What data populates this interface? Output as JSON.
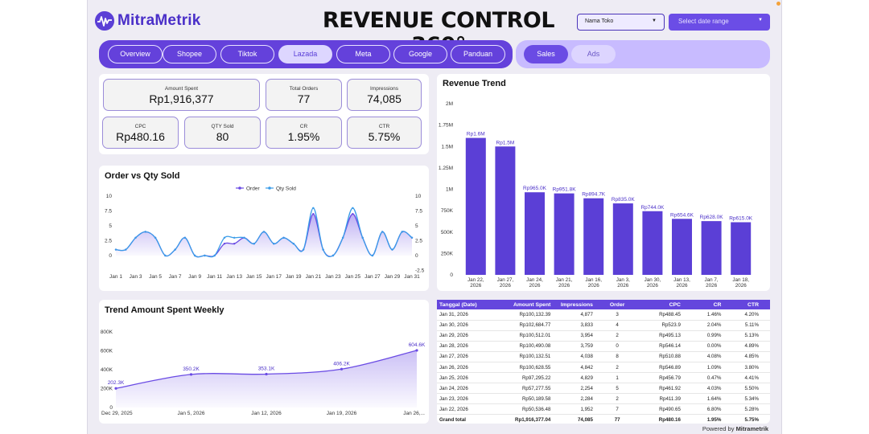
{
  "brand": {
    "name": "MitraMetrik"
  },
  "header": {
    "title": "REVENUE CONTROL 360°"
  },
  "filters": {
    "store": "Nama Toko",
    "date_range": "Select date range"
  },
  "tabs": [
    "Overview",
    "Shopee",
    "Tiktok",
    "Lazada",
    "Meta",
    "Google",
    "Panduan"
  ],
  "active_tab": "Lazada",
  "modes": [
    "Sales",
    "Ads"
  ],
  "active_mode": "Sales",
  "kpis": [
    {
      "label": "Amount Spent",
      "value": "Rp1,916,377"
    },
    {
      "label": "Total Orders",
      "value": "77"
    },
    {
      "label": "Impressions",
      "value": "74,085"
    },
    {
      "label": "CPC",
      "value": "Rp480.16"
    },
    {
      "label": "QTY Sold",
      "value": "80"
    },
    {
      "label": "CR",
      "value": "1.95%"
    },
    {
      "label": "CTR",
      "value": "5.75%"
    }
  ],
  "panels": {
    "order_qty_title": "Order vs Qty Sold",
    "weekly_title": "Trend Amount Spent Weekly",
    "revenue_title": "Revenue Trend"
  },
  "colors": {
    "accent": "#6441db",
    "bar": "#5b3fd6",
    "order_line": "#6a4be4",
    "qty_line": "#3a9ce8"
  },
  "chart_data": [
    {
      "type": "line",
      "title": "Order vs Qty Sold",
      "x_ticks": [
        "Jan 1",
        "Jan 3",
        "Jan 5",
        "Jan 7",
        "Jan 9",
        "Jan 11",
        "Jan 13",
        "Jan 15",
        "Jan 17",
        "Jan 19",
        "Jan 21",
        "Jan 23",
        "Jan 25",
        "Jan 27",
        "Jan 29",
        "Jan 31"
      ],
      "x": [
        "Jan 1",
        "Jan 2",
        "Jan 3",
        "Jan 4",
        "Jan 5",
        "Jan 6",
        "Jan 7",
        "Jan 8",
        "Jan 9",
        "Jan 10",
        "Jan 11",
        "Jan 12",
        "Jan 13",
        "Jan 14",
        "Jan 15",
        "Jan 16",
        "Jan 17",
        "Jan 18",
        "Jan 19",
        "Jan 20",
        "Jan 21",
        "Jan 22",
        "Jan 23",
        "Jan 24",
        "Jan 25",
        "Jan 26",
        "Jan 27",
        "Jan 28",
        "Jan 29",
        "Jan 30",
        "Jan 31"
      ],
      "series": [
        {
          "name": "Order",
          "values": [
            1,
            1,
            3,
            4,
            3,
            0,
            1,
            3,
            0,
            0,
            0,
            2,
            2,
            3,
            2,
            4,
            2,
            3,
            2,
            1,
            7,
            1,
            0,
            3,
            7,
            3,
            0,
            4,
            1,
            4,
            3
          ]
        },
        {
          "name": "Qty Sold",
          "values": [
            1,
            1,
            3,
            4,
            3,
            0,
            1,
            3,
            0,
            0,
            0,
            3,
            3,
            3,
            2,
            4,
            2,
            3,
            2,
            1,
            8,
            1,
            0,
            3,
            8,
            3,
            0,
            4,
            1,
            4,
            3
          ]
        }
      ],
      "y_left_ticks": [
        "10",
        "7.5",
        "5",
        "2.5",
        "0"
      ],
      "y_right_ticks": [
        "10",
        "7.5",
        "5",
        "2.5",
        "0",
        "-2.5"
      ],
      "ylim": [
        0,
        10
      ],
      "legend": "top"
    },
    {
      "type": "area",
      "title": "Trend Amount Spent Weekly",
      "categories": [
        "Dec 29, 2025",
        "Jan 5, 2026",
        "Jan 12, 2026",
        "Jan 19, 2026",
        "Jan 26,..."
      ],
      "values": [
        202300,
        350200,
        353100,
        406200,
        604600
      ],
      "data_labels": [
        "202.3K",
        "350.2K",
        "353.1K",
        "406.2K",
        "604.6K"
      ],
      "y_ticks": [
        "800K",
        "600K",
        "400K",
        "200K",
        "0"
      ],
      "ylim": [
        0,
        800000
      ]
    },
    {
      "type": "bar",
      "title": "Revenue Trend",
      "categories": [
        "Jan 22, 2026",
        "Jan 27, 2026",
        "Jan 24, 2026",
        "Jan 21, 2026",
        "Jan 16, 2026",
        "Jan 3, 2026",
        "Jan 30, 2026",
        "Jan 13, 2026",
        "Jan 7, 2026",
        "Jan 18, 2026"
      ],
      "values": [
        1600000,
        1500000,
        965000,
        951800,
        894700,
        835000,
        744000,
        654600,
        628000,
        615000
      ],
      "data_labels": [
        "Rp1.6M",
        "Rp1.5M",
        "Rp965.0K",
        "Rp951.8K",
        "Rp894.7K",
        "Rp835.0K",
        "Rp744.0K",
        "Rp654.6K",
        "Rp628.0K",
        "Rp615.0K"
      ],
      "y_ticks": [
        "2M",
        "1.75M",
        "1.5M",
        "1.25M",
        "1M",
        "750K",
        "500K",
        "250K",
        "0"
      ],
      "ylim": [
        0,
        2000000
      ]
    },
    {
      "type": "table",
      "columns": [
        "Tanggal (Date)",
        "Amount Spent",
        "Impressions",
        "Order",
        "CPC",
        "CR",
        "CTR"
      ],
      "rows": [
        [
          "Jan 31, 2026",
          "Rp100,132.39",
          "4,877",
          "3",
          "Rp488.45",
          "1.46%",
          "4.20%"
        ],
        [
          "Jan 30, 2026",
          "Rp102,684.77",
          "3,833",
          "4",
          "Rp523.9",
          "2.04%",
          "5.11%"
        ],
        [
          "Jan 29, 2026",
          "Rp100,512.01",
          "3,954",
          "2",
          "Rp495.13",
          "0.99%",
          "5.13%"
        ],
        [
          "Jan 28, 2026",
          "Rp100,490.08",
          "3,759",
          "0",
          "Rp546.14",
          "0.00%",
          "4.89%"
        ],
        [
          "Jan 27, 2026",
          "Rp100,132.51",
          "4,038",
          "8",
          "Rp510.88",
          "4.08%",
          "4.85%"
        ],
        [
          "Jan 26, 2026",
          "Rp100,628.55",
          "4,842",
          "2",
          "Rp546.89",
          "1.09%",
          "3.80%"
        ],
        [
          "Jan 25, 2026",
          "Rp97,295.22",
          "4,829",
          "1",
          "Rp456.79",
          "0.47%",
          "4.41%"
        ],
        [
          "Jan 24, 2026",
          "Rp57,277.55",
          "2,254",
          "5",
          "Rp461.92",
          "4.03%",
          "5.50%"
        ],
        [
          "Jan 23, 2026",
          "Rp50,189.58",
          "2,284",
          "2",
          "Rp411.39",
          "1.64%",
          "5.34%"
        ],
        [
          "Jan 22, 2026",
          "Rp50,536.48",
          "1,952",
          "7",
          "Rp490.65",
          "6.80%",
          "5.28%"
        ]
      ],
      "total": [
        "Grand total",
        "Rp1,916,377.04",
        "74,085",
        "77",
        "Rp480.16",
        "1.95%",
        "5.75%"
      ]
    }
  ],
  "footer": {
    "prefix": "Powered by ",
    "brand": "Mitrametrik"
  }
}
